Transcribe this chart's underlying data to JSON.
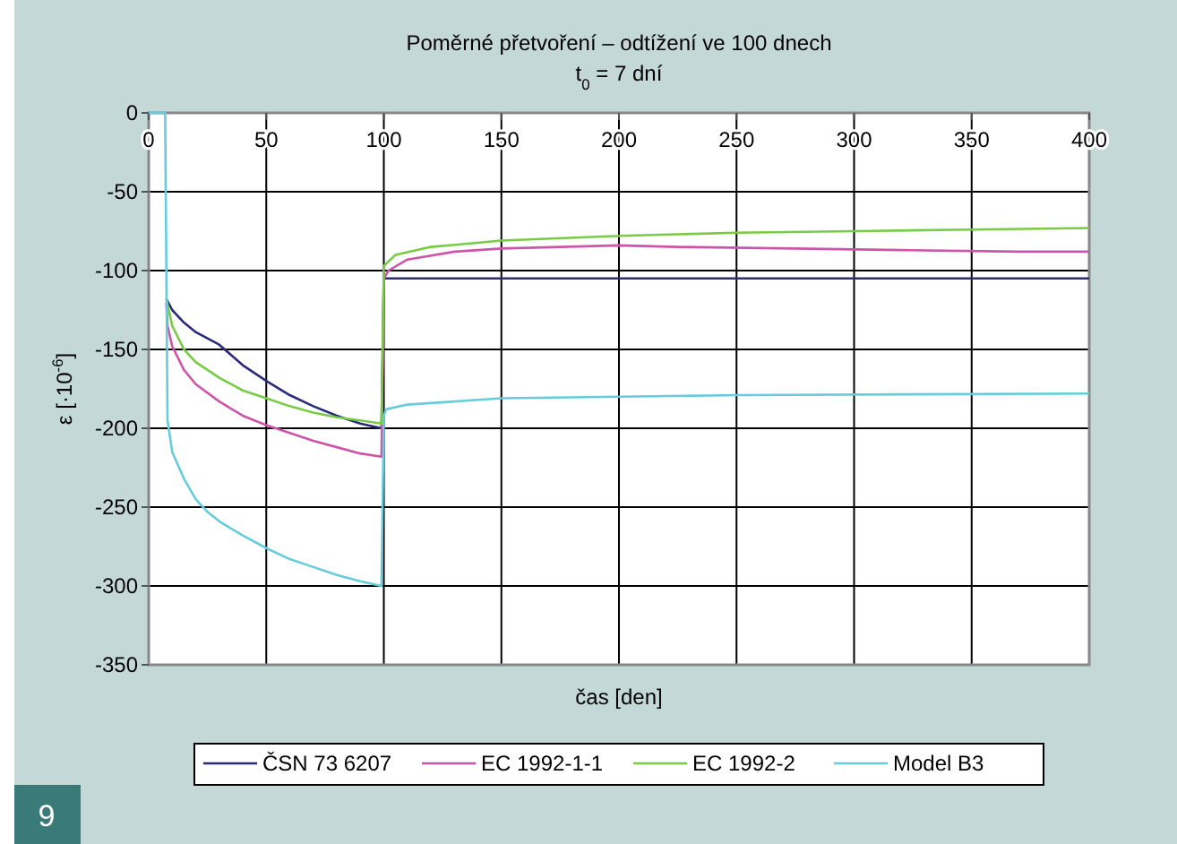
{
  "chart_data": {
    "type": "line",
    "title": "Poměrné přetvoření – odtížení ve 100 dnech",
    "subtitle": "t$_{0}$ = 7 dní",
    "xlabel": "čas [den]",
    "ylabel": "ε [·10$^{-6}$]",
    "annotations": [
      "9"
    ],
    "xlim": [
      0,
      400
    ],
    "xticks": [
      0,
      50,
      100,
      150,
      200,
      250,
      300,
      350,
      400
    ],
    "ylim": [
      -350,
      0
    ],
    "yticks": [
      -350,
      -300,
      -250,
      -200,
      -150,
      -100,
      -50,
      0
    ],
    "grid": true,
    "legend": "bottom",
    "marker": "none",
    "line_style": "solid",
    "series": [
      {
        "name": "ČSN 73 6207",
        "color": "#2b2b7a",
        "x": [
          7.5,
          10,
          15,
          20,
          25,
          30,
          40,
          50,
          60,
          70,
          80,
          90,
          99,
          100,
          150,
          200,
          300,
          400
        ],
        "values": [
          -118,
          -125,
          -133,
          -139,
          -143,
          -147,
          -160,
          -170,
          -179,
          -186,
          -192,
          -197,
          -200,
          -105,
          -105,
          -105,
          -105,
          -105
        ]
      },
      {
        "name": "EC 1992-1-1",
        "color": "#cc55aa",
        "x": [
          7.5,
          8,
          10,
          15,
          20,
          30,
          40,
          50,
          60,
          70,
          80,
          90,
          99,
          100,
          102,
          110,
          130,
          150,
          200,
          225,
          275,
          320,
          370,
          400
        ],
        "values": [
          -120,
          -135,
          -148,
          -163,
          -172,
          -183,
          -192,
          -198,
          -203,
          -208,
          -212,
          -216,
          -218,
          -105,
          -100,
          -93,
          -88,
          -86,
          -84,
          -85,
          -86,
          -87,
          -88,
          -88
        ]
      },
      {
        "name": "EC 1992-2",
        "color": "#77cc44",
        "x": [
          7.5,
          10,
          15,
          20,
          30,
          40,
          50,
          60,
          70,
          80,
          90,
          99,
          100,
          105,
          120,
          150,
          200,
          250,
          300,
          350,
          400
        ],
        "values": [
          -118,
          -135,
          -150,
          -158,
          -168,
          -176,
          -181,
          -186,
          -190,
          -193,
          -195,
          -197,
          -97,
          -90,
          -85,
          -81,
          -78,
          -76,
          -75,
          -74,
          -73
        ]
      },
      {
        "name": "Model B3",
        "color": "#66ccdd",
        "x": [
          0,
          7,
          8,
          10,
          15,
          20,
          25,
          30,
          40,
          50,
          60,
          70,
          80,
          90,
          99,
          100,
          101,
          110,
          130,
          150,
          200,
          250,
          400
        ],
        "values": [
          0,
          0,
          -195,
          -215,
          -232,
          -245,
          -253,
          -259,
          -268,
          -276,
          -283,
          -288,
          -293,
          -297,
          -300,
          -192,
          -188,
          -185,
          -183,
          -181,
          -180,
          -179,
          -178
        ]
      }
    ]
  }
}
